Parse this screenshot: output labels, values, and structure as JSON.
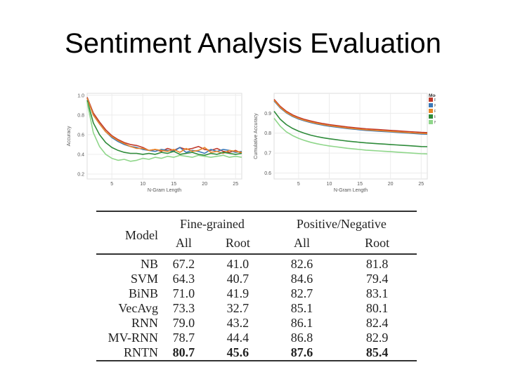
{
  "slide": {
    "title": "Sentiment Analysis Evaluation"
  },
  "chart_data": [
    {
      "type": "line",
      "title": "",
      "xlabel": "N-Gram Length",
      "ylabel": "Accuracy",
      "xlim": [
        1,
        26
      ],
      "ylim": [
        0.15,
        1.02
      ],
      "xticks": [
        5,
        10,
        15,
        20,
        25
      ],
      "yticks": [
        0.2,
        0.4,
        0.6,
        0.8,
        1.0
      ],
      "ytick_labels": [
        "0.2",
        "0.4",
        "0.6",
        "0.8",
        "1.0"
      ],
      "x": [
        1,
        2,
        3,
        4,
        5,
        6,
        7,
        8,
        9,
        10,
        11,
        12,
        13,
        14,
        15,
        16,
        17,
        18,
        19,
        20,
        21,
        22,
        23,
        24,
        25,
        26
      ],
      "series": [
        {
          "name": "RNTN",
          "color": "#c0392b",
          "values": [
            0.98,
            0.82,
            0.73,
            0.65,
            0.59,
            0.55,
            0.52,
            0.5,
            0.49,
            0.47,
            0.44,
            0.45,
            0.43,
            0.46,
            0.44,
            0.47,
            0.45,
            0.46,
            0.48,
            0.45,
            0.44,
            0.46,
            0.43,
            0.42,
            0.44,
            0.41
          ]
        },
        {
          "name": "MV-RNN",
          "color": "#3a78b8",
          "values": [
            0.97,
            0.8,
            0.71,
            0.63,
            0.57,
            0.53,
            0.5,
            0.48,
            0.47,
            0.45,
            0.44,
            0.43,
            0.45,
            0.44,
            0.43,
            0.47,
            0.42,
            0.44,
            0.43,
            0.41,
            0.45,
            0.43,
            0.45,
            0.44,
            0.42,
            0.43
          ]
        },
        {
          "name": "RNN",
          "color": "#e8862a",
          "values": [
            0.97,
            0.8,
            0.71,
            0.63,
            0.58,
            0.54,
            0.51,
            0.48,
            0.46,
            0.46,
            0.44,
            0.45,
            0.44,
            0.43,
            0.45,
            0.42,
            0.46,
            0.43,
            0.44,
            0.47,
            0.42,
            0.43,
            0.41,
            0.44,
            0.43,
            0.42
          ]
        },
        {
          "name": "biNB",
          "color": "#2e8b3a",
          "values": [
            0.95,
            0.72,
            0.6,
            0.52,
            0.47,
            0.44,
            0.42,
            0.41,
            0.41,
            0.4,
            0.41,
            0.4,
            0.42,
            0.41,
            0.43,
            0.4,
            0.41,
            0.42,
            0.4,
            0.39,
            0.41,
            0.4,
            0.42,
            0.41,
            0.4,
            0.41
          ]
        },
        {
          "name": "NB",
          "color": "#8fd68a",
          "values": [
            0.93,
            0.62,
            0.48,
            0.4,
            0.36,
            0.34,
            0.35,
            0.33,
            0.34,
            0.36,
            0.35,
            0.37,
            0.36,
            0.38,
            0.37,
            0.39,
            0.38,
            0.37,
            0.39,
            0.38,
            0.37,
            0.38,
            0.39,
            0.37,
            0.38,
            0.37
          ]
        }
      ]
    },
    {
      "type": "line",
      "title": "",
      "xlabel": "N-Gram Length",
      "ylabel": "Cumulative Accuracy",
      "xlim": [
        1,
        26
      ],
      "ylim": [
        0.57,
        1.0
      ],
      "xticks": [
        5,
        10,
        15,
        20,
        25
      ],
      "yticks": [
        0.6,
        0.7,
        0.8,
        0.9
      ],
      "ytick_labels": [
        "0.6",
        "0.7",
        "0.8",
        "0.9"
      ],
      "x": [
        1,
        2,
        3,
        4,
        5,
        6,
        7,
        8,
        9,
        10,
        11,
        12,
        13,
        14,
        15,
        16,
        17,
        18,
        19,
        20,
        21,
        22,
        23,
        24,
        25,
        26
      ],
      "legend": {
        "title": "Model",
        "position": "top-right"
      },
      "series": [
        {
          "name": "RNTN",
          "color": "#c0392b",
          "values": [
            0.97,
            0.935,
            0.91,
            0.892,
            0.879,
            0.869,
            0.861,
            0.854,
            0.848,
            0.843,
            0.839,
            0.835,
            0.831,
            0.828,
            0.825,
            0.822,
            0.82,
            0.818,
            0.816,
            0.814,
            0.812,
            0.81,
            0.808,
            0.806,
            0.804,
            0.803
          ]
        },
        {
          "name": "MV-RNN",
          "color": "#3a78b8",
          "values": [
            0.962,
            0.927,
            0.902,
            0.884,
            0.871,
            0.861,
            0.853,
            0.846,
            0.84,
            0.835,
            0.831,
            0.827,
            0.823,
            0.82,
            0.817,
            0.814,
            0.812,
            0.81,
            0.808,
            0.806,
            0.804,
            0.802,
            0.8,
            0.798,
            0.796,
            0.795
          ]
        },
        {
          "name": "RNN",
          "color": "#e8862a",
          "values": [
            0.965,
            0.93,
            0.905,
            0.887,
            0.874,
            0.864,
            0.856,
            0.849,
            0.843,
            0.838,
            0.834,
            0.83,
            0.826,
            0.823,
            0.82,
            0.817,
            0.815,
            0.813,
            0.811,
            0.809,
            0.807,
            0.805,
            0.803,
            0.801,
            0.799,
            0.798
          ]
        },
        {
          "name": "biNB",
          "color": "#2e8b3a",
          "values": [
            0.91,
            0.87,
            0.843,
            0.824,
            0.81,
            0.799,
            0.79,
            0.783,
            0.777,
            0.772,
            0.768,
            0.764,
            0.76,
            0.757,
            0.754,
            0.751,
            0.749,
            0.747,
            0.745,
            0.743,
            0.741,
            0.739,
            0.737,
            0.735,
            0.733,
            0.732
          ]
        },
        {
          "name": "NB",
          "color": "#8fd68a",
          "values": [
            0.875,
            0.835,
            0.807,
            0.788,
            0.774,
            0.763,
            0.754,
            0.747,
            0.741,
            0.736,
            0.732,
            0.728,
            0.724,
            0.721,
            0.718,
            0.715,
            0.713,
            0.711,
            0.709,
            0.707,
            0.705,
            0.703,
            0.701,
            0.699,
            0.697,
            0.696
          ]
        }
      ]
    },
    {
      "type": "table",
      "columns": {
        "model": "Model",
        "group1": "Fine-grained",
        "group2": "Positive/Negative",
        "sub": [
          "All",
          "Root",
          "All",
          "Root"
        ]
      },
      "rows": [
        {
          "model": "NB",
          "values": [
            "67.2",
            "41.0",
            "82.6",
            "81.8"
          ]
        },
        {
          "model": "SVM",
          "values": [
            "64.3",
            "40.7",
            "84.6",
            "79.4"
          ]
        },
        {
          "model": "BiNB",
          "values": [
            "71.0",
            "41.9",
            "82.7",
            "83.1"
          ]
        },
        {
          "model": "VecAvg",
          "values": [
            "73.3",
            "32.7",
            "85.1",
            "80.1"
          ]
        },
        {
          "model": "RNN",
          "values": [
            "79.0",
            "43.2",
            "86.1",
            "82.4"
          ]
        },
        {
          "model": "MV-RNN",
          "values": [
            "78.7",
            "44.4",
            "86.8",
            "82.9"
          ]
        },
        {
          "model": "RNTN",
          "values": [
            "80.7",
            "45.6",
            "87.6",
            "85.4"
          ],
          "bold": true
        }
      ]
    }
  ]
}
